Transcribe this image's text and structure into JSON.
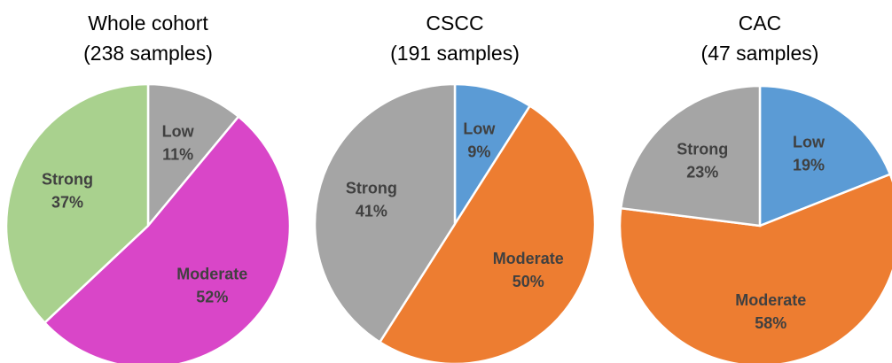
{
  "chart_data": [
    {
      "type": "pie",
      "title": "Whole cohort",
      "subtitle": "(238 samples)",
      "categories": [
        "Low",
        "Moderate",
        "Strong"
      ],
      "values": [
        11,
        52,
        37
      ],
      "value_labels": [
        "11%",
        "52%",
        "37%"
      ],
      "colors": [
        "#a5a5a5",
        "#d946c8",
        "#a9d18e"
      ]
    },
    {
      "type": "pie",
      "title": "CSCC",
      "subtitle": "(191 samples)",
      "categories": [
        "Low",
        "Moderate",
        "Strong"
      ],
      "values": [
        9,
        50,
        41
      ],
      "value_labels": [
        "9%",
        "50%",
        "41%"
      ],
      "colors": [
        "#5b9bd5",
        "#ed7d31",
        "#a5a5a5"
      ]
    },
    {
      "type": "pie",
      "title": "CAC",
      "subtitle": "(47 samples)",
      "categories": [
        "Low",
        "Moderate",
        "Strong"
      ],
      "values": [
        19,
        58,
        23
      ],
      "value_labels": [
        "19%",
        "58%",
        "23%"
      ],
      "colors": [
        "#5b9bd5",
        "#ed7d31",
        "#a5a5a5"
      ]
    }
  ]
}
